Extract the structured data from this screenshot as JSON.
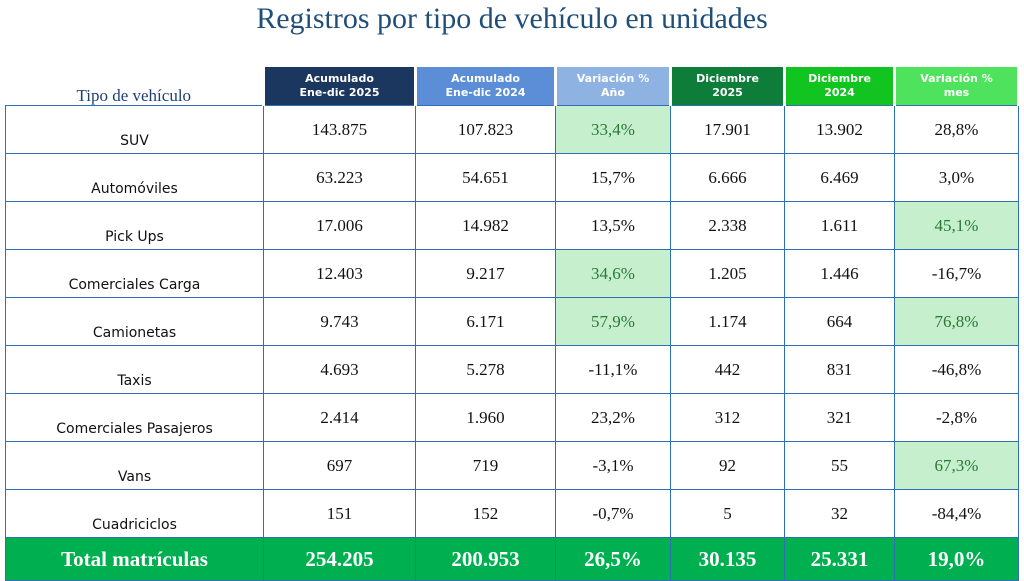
{
  "title": "Registros por tipo de vehículo en unidades",
  "table": {
    "header": {
      "label": "Tipo de vehículo",
      "columns": [
        {
          "lines": [
            "Acumulado",
            "Ene-dic 2025"
          ],
          "color": "#1b365f"
        },
        {
          "lines": [
            "Acumulado",
            "Ene-dic 2024"
          ],
          "color": "#5b8ed6"
        },
        {
          "lines": [
            "Variación %",
            "Año"
          ],
          "color": "#8eb3e3"
        },
        {
          "lines": [
            "Diciembre",
            "2025"
          ],
          "color": "#0e7d39"
        },
        {
          "lines": [
            "Diciembre",
            "2024"
          ],
          "color": "#12c41f"
        },
        {
          "lines": [
            "Variación %",
            "mes"
          ],
          "color": "#4fe35d"
        }
      ]
    },
    "rows": [
      {
        "label": "SUV",
        "cells": [
          "143.875",
          "107.823",
          "33,4%",
          "17.901",
          "13.902",
          "28,8%"
        ],
        "highlight": [
          2
        ]
      },
      {
        "label": "Automóviles",
        "cells": [
          "63.223",
          "54.651",
          "15,7%",
          "6.666",
          "6.469",
          "3,0%"
        ],
        "highlight": []
      },
      {
        "label": "Pick Ups",
        "cells": [
          "17.006",
          "14.982",
          "13,5%",
          "2.338",
          "1.611",
          "45,1%"
        ],
        "highlight": [
          5
        ]
      },
      {
        "label": "Comerciales Carga",
        "cells": [
          "12.403",
          "9.217",
          "34,6%",
          "1.205",
          "1.446",
          "-16,7%"
        ],
        "highlight": [
          2
        ]
      },
      {
        "label": "Camionetas",
        "cells": [
          "9.743",
          "6.171",
          "57,9%",
          "1.174",
          "664",
          "76,8%"
        ],
        "highlight": [
          2,
          5
        ]
      },
      {
        "label": "Taxis",
        "cells": [
          "4.693",
          "5.278",
          "-11,1%",
          "442",
          "831",
          "-46,8%"
        ],
        "highlight": []
      },
      {
        "label": "Comerciales Pasajeros",
        "cells": [
          "2.414",
          "1.960",
          "23,2%",
          "312",
          "321",
          "-2,8%"
        ],
        "highlight": []
      },
      {
        "label": "Vans",
        "cells": [
          "697",
          "719",
          "-3,1%",
          "92",
          "55",
          "67,3%"
        ],
        "highlight": [
          5
        ]
      },
      {
        "label": "Cuadriciclos",
        "cells": [
          "151",
          "152",
          "-0,7%",
          "5",
          "32",
          "-84,4%"
        ],
        "highlight": []
      }
    ],
    "total": {
      "label": "Total matrículas",
      "cells": [
        "254.205",
        "200.953",
        "26,5%",
        "30.135",
        "25.331",
        "19,0%"
      ]
    }
  }
}
